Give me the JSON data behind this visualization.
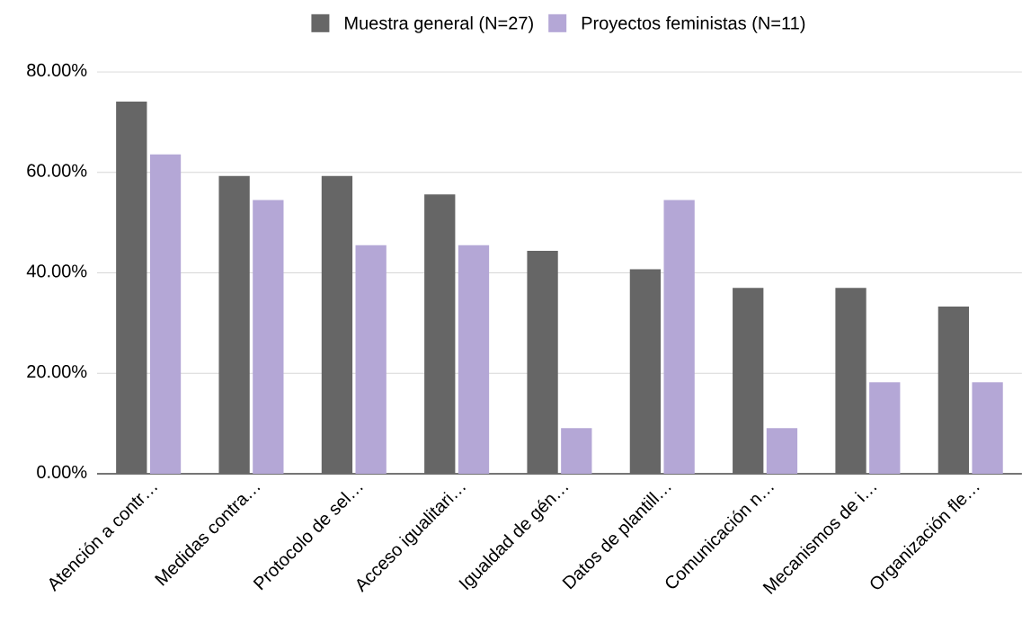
{
  "chart_data": {
    "type": "bar",
    "categories": [
      "Atención a contr…",
      "Medidas contra…",
      "Protocolo de sel…",
      "Acceso igualitari…",
      "Igualdad de gén…",
      "Datos de plantill…",
      "Comunicación n…",
      "Mecanismos de i…",
      "Organización fle…"
    ],
    "series": [
      {
        "name": "Muestra general (N=27)",
        "color": "#666666",
        "values": [
          74.1,
          59.3,
          59.3,
          55.6,
          44.4,
          40.7,
          37.0,
          37.0,
          33.3
        ]
      },
      {
        "name": "Proyectos feministas (N=11)",
        "color": "#b4a7d6",
        "values": [
          63.6,
          54.5,
          45.5,
          45.5,
          9.1,
          54.5,
          9.1,
          18.2,
          18.2
        ]
      }
    ],
    "ylim": [
      0,
      80
    ],
    "yticks": [
      {
        "value": 0,
        "label": "0.00%"
      },
      {
        "value": 20,
        "label": "20.00%"
      },
      {
        "value": 40,
        "label": "40.00%"
      },
      {
        "value": 60,
        "label": "60.00%"
      },
      {
        "value": 80,
        "label": "80.00%"
      }
    ],
    "grid": "y",
    "legend": "top"
  }
}
